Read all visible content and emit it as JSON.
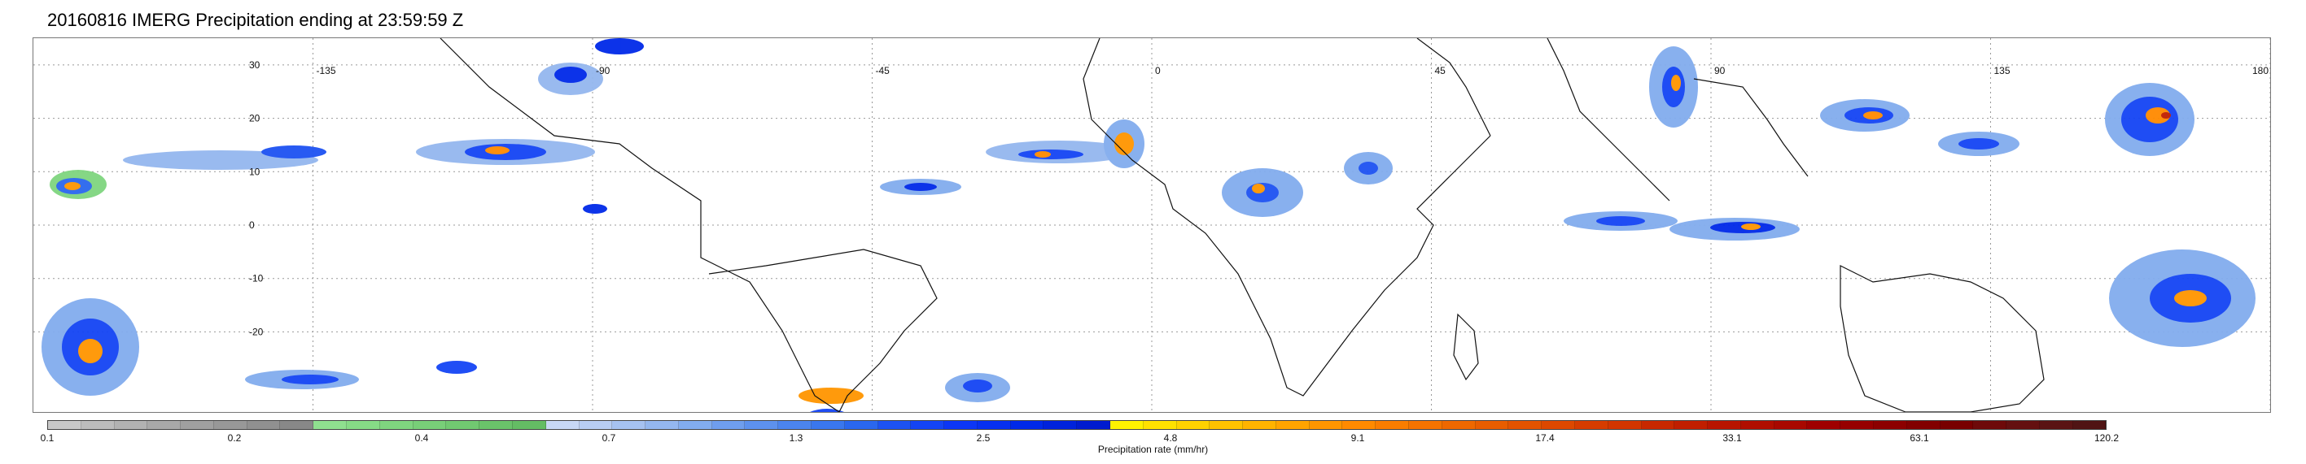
{
  "title": "20160816 IMERG Precipitation ending at 23:59:59 Z",
  "map": {
    "lon_labels": [
      "-135",
      "-90",
      "-45",
      "0",
      "45",
      "90",
      "135",
      "180"
    ],
    "lat_labels": [
      "30",
      "20",
      "10",
      "0",
      "-10",
      "-20"
    ],
    "gridline_style": "dotted"
  },
  "colorbar": {
    "label": "Precipitation rate (mm/hr)",
    "ticks": [
      "0.1",
      "0.2",
      "0.4",
      "0.7",
      "1.3",
      "2.5",
      "4.8",
      "9.1",
      "17.4",
      "33.1",
      "63.1",
      "120.2"
    ],
    "colors": [
      "#c8c8c8",
      "#bcbcbc",
      "#b2b2b2",
      "#a8a8a8",
      "#a0a0a0",
      "#989898",
      "#909090",
      "#888888",
      "#8fe08f",
      "#86db86",
      "#7fd57f",
      "#78cf78",
      "#71c971",
      "#6ac36a",
      "#64bd64",
      "#c8d8f5",
      "#b8cdf3",
      "#a6c2f1",
      "#94b7ef",
      "#82acee",
      "#6f9eee",
      "#5d91ee",
      "#4b84ee",
      "#3a77ee",
      "#2a67ee",
      "#1d52f2",
      "#1444f4",
      "#0c36f5",
      "#0630f0",
      "#0029e8",
      "#0022dc",
      "#001bd0",
      "#fff200",
      "#ffe100",
      "#ffd200",
      "#ffc200",
      "#ffb300",
      "#ffa400",
      "#ff9500",
      "#ff8a00",
      "#fa7d00",
      "#f47300",
      "#ee6800",
      "#e85d00",
      "#e35300",
      "#dd4800",
      "#d63c00",
      "#d23500",
      "#c82800",
      "#c01e00",
      "#b81500",
      "#b00e00",
      "#a80800",
      "#9f0000",
      "#960000",
      "#8c0000",
      "#820000",
      "#780000",
      "#6e0a0a",
      "#641010",
      "#5a1414",
      "#501414"
    ]
  }
}
